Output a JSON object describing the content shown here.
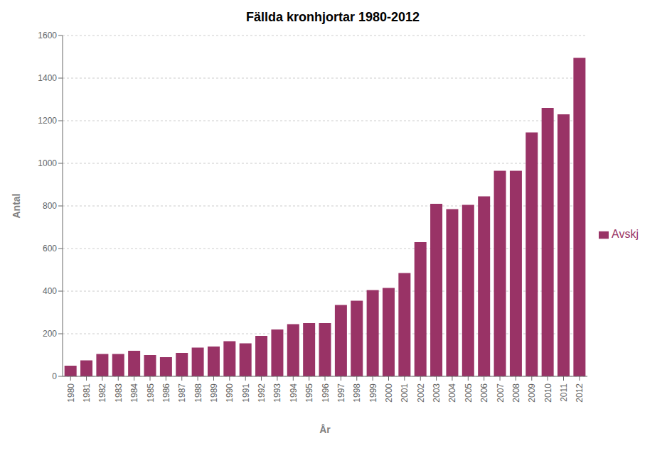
{
  "chart_data": {
    "type": "bar",
    "title": "Fällda kronhjortar 1980-2012",
    "x_label": "År",
    "y_label": "Antal",
    "categories": [
      "1980",
      "1981",
      "1982",
      "1983",
      "1984",
      "1985",
      "1986",
      "1987",
      "1988",
      "1989",
      "1990",
      "1991",
      "1992",
      "1993",
      "1994",
      "1995",
      "1996",
      "1997",
      "1998",
      "1999",
      "2000",
      "2001",
      "2002",
      "2003",
      "2004",
      "2005",
      "2006",
      "2007",
      "2008",
      "2009",
      "2010",
      "2011",
      "2012"
    ],
    "series": [
      {
        "name": "Avskj",
        "color": "#993366",
        "values": [
          50,
          75,
          105,
          105,
          120,
          100,
          90,
          110,
          135,
          140,
          165,
          155,
          190,
          220,
          245,
          250,
          250,
          335,
          355,
          405,
          415,
          485,
          630,
          810,
          785,
          805,
          845,
          965,
          965,
          1145,
          1260,
          1230,
          1495
        ]
      }
    ],
    "ylim": [
      0,
      1600
    ],
    "yticks": [
      0,
      200,
      400,
      600,
      800,
      1000,
      1200,
      1400,
      1600
    ],
    "grid": true,
    "legend": "right"
  }
}
